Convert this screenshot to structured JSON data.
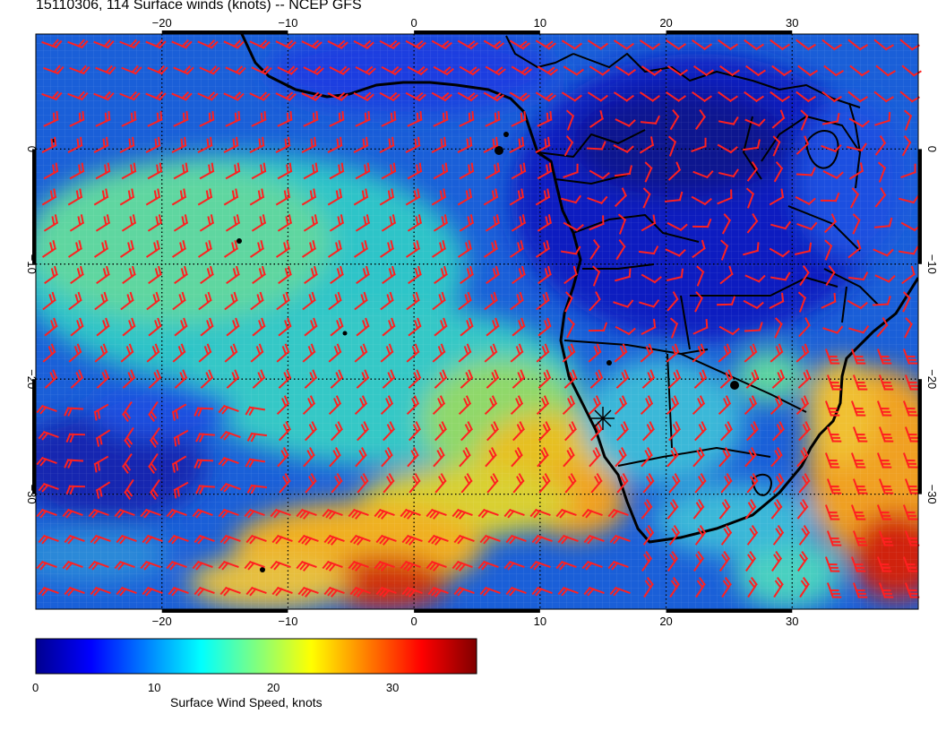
{
  "title": "15110306, 114 Surface winds (knots) -- NCEP GFS",
  "map": {
    "lon_range": [
      -30,
      40
    ],
    "lat_range": [
      -40,
      10
    ],
    "lon_ticks": [
      -20,
      -10,
      0,
      10,
      20,
      30
    ],
    "lat_ticks": [
      0,
      -10,
      -20,
      -30
    ],
    "lon_tick_labels": [
      "−20",
      "−10",
      "0",
      "10",
      "20",
      "30"
    ],
    "lat_tick_labels": [
      "0",
      "−10",
      "−20",
      "−30"
    ],
    "graticule": "dotted",
    "barb_color": "#ff2020",
    "coastline_color": "#000000"
  },
  "colorbar": {
    "label": "Surface Wind Speed, knots",
    "min": 0,
    "max": 37,
    "ticks": [
      0,
      10,
      20,
      30
    ],
    "tick_labels": [
      "0",
      "10",
      "20",
      "30"
    ],
    "colormap": "jet"
  }
}
